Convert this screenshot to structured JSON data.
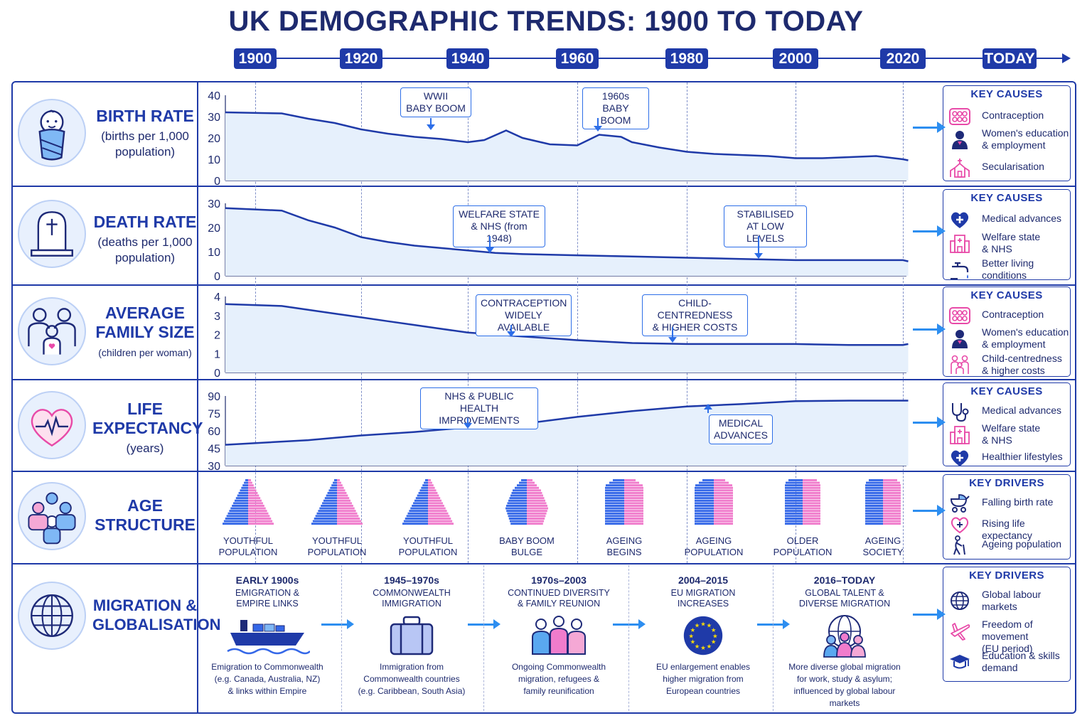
{
  "title": "UK DEMOGRAPHIC TRENDS: 1900 TO TODAY",
  "timeline": [
    "1900",
    "1920",
    "1940",
    "1960",
    "1980",
    "2000",
    "2020",
    "TODAY"
  ],
  "rows": {
    "birth": {
      "title_lines": [
        "BIRTH RATE"
      ],
      "sub_lines": [
        "(births per 1,000",
        "population)"
      ]
    },
    "death": {
      "title_lines": [
        "DEATH RATE"
      ],
      "sub_lines": [
        "(deaths per 1,000",
        "population)"
      ]
    },
    "family": {
      "title_lines": [
        "AVERAGE",
        "FAMILY SIZE"
      ],
      "sub_lines": [
        "(children per woman)"
      ]
    },
    "life": {
      "title_lines": [
        "LIFE",
        "EXPECTANCY"
      ],
      "sub_lines": [
        "(years)"
      ]
    },
    "age": {
      "title_lines": [
        "AGE",
        "STRUCTURE"
      ],
      "sub_lines": []
    },
    "migration": {
      "title_lines": [
        "MIGRATION &",
        "GLOBALISATION"
      ],
      "sub_lines": []
    }
  },
  "callouts": {
    "birth_wwii": [
      "WWII",
      "BABY BOOM"
    ],
    "birth_1960s": [
      "1960s",
      "BABY BOOM"
    ],
    "death_welfare": [
      "WELFARE STATE",
      "& NHS (from 1948)"
    ],
    "death_stabilised": [
      "STABILISED",
      "AT LOW LEVELS"
    ],
    "family_contraception": [
      "CONTRACEPTION",
      "WIDELY AVAILABLE"
    ],
    "family_child": [
      "CHILD-CENTREDNESS",
      "& HIGHER COSTS"
    ],
    "life_nhs": [
      "NHS & PUBLIC",
      "HEALTH IMPROVEMENTS"
    ],
    "life_medical": [
      "MEDICAL",
      "ADVANCES"
    ]
  },
  "causes": {
    "birth": {
      "title": "KEY CAUSES",
      "items": [
        {
          "icon": "pill-pack-icon",
          "text": [
            "Contraception"
          ]
        },
        {
          "icon": "woman-icon",
          "text": [
            "Women's education",
            "& employment"
          ]
        },
        {
          "icon": "church-icon",
          "text": [
            "Secularisation"
          ]
        }
      ]
    },
    "death": {
      "title": "KEY CAUSES",
      "items": [
        {
          "icon": "heart-plus-icon",
          "text": [
            "Medical advances"
          ]
        },
        {
          "icon": "hospital-icon",
          "text": [
            "Welfare state",
            "& NHS"
          ]
        },
        {
          "icon": "tap-icon",
          "text": [
            "Better living",
            "conditions"
          ]
        }
      ]
    },
    "family": {
      "title": "KEY CAUSES",
      "items": [
        {
          "icon": "pill-pack-icon",
          "text": [
            "Contraception"
          ]
        },
        {
          "icon": "woman-icon",
          "text": [
            "Women's education",
            "& employment"
          ]
        },
        {
          "icon": "family-icon",
          "text": [
            "Child-centredness",
            "& higher costs"
          ]
        }
      ]
    },
    "life": {
      "title": "KEY CAUSES",
      "items": [
        {
          "icon": "stethoscope-icon",
          "text": [
            "Medical advances"
          ]
        },
        {
          "icon": "hospital-icon",
          "text": [
            "Welfare state",
            "& NHS"
          ]
        },
        {
          "icon": "heart-plus-icon",
          "text": [
            "Healthier lifestyles"
          ]
        }
      ]
    },
    "age": {
      "title": "KEY DRIVERS",
      "items": [
        {
          "icon": "pram-icon",
          "text": [
            "Falling birth rate"
          ]
        },
        {
          "icon": "heart-outline-icon",
          "text": [
            "Rising life expectancy"
          ]
        },
        {
          "icon": "elderly-icon",
          "text": [
            "Ageing population"
          ]
        }
      ]
    },
    "migration": {
      "title": "KEY DRIVERS",
      "items": [
        {
          "icon": "globe-icon",
          "text": [
            "Global labour",
            "markets"
          ]
        },
        {
          "icon": "plane-icon",
          "text": [
            "Freedom of movement",
            "(EU period)"
          ]
        },
        {
          "icon": "graduation-cap-icon",
          "text": [
            "Education & skills",
            "demand"
          ]
        }
      ]
    }
  },
  "pyramids": [
    {
      "label": [
        "YOUTHFUL",
        "POPULATION"
      ],
      "shape": "youthful"
    },
    {
      "label": [
        "YOUTHFUL",
        "POPULATION"
      ],
      "shape": "youthful"
    },
    {
      "label": [
        "YOUTHFUL",
        "POPULATION"
      ],
      "shape": "youthful"
    },
    {
      "label": [
        "BABY BOOM",
        "BULGE"
      ],
      "shape": "bulge"
    },
    {
      "label": [
        "AGEING",
        "BEGINS"
      ],
      "shape": "ageing"
    },
    {
      "label": [
        "AGEING",
        "POPULATION"
      ],
      "shape": "ageing"
    },
    {
      "label": [
        "OLDER",
        "POPULATION"
      ],
      "shape": "older"
    },
    {
      "label": [
        "AGEING",
        "SOCIETY"
      ],
      "shape": "older"
    }
  ],
  "migration": [
    {
      "period": "EARLY 1900s",
      "title": [
        "EMIGRATION &",
        "EMPIRE LINKS"
      ],
      "desc": [
        "Emigration to Commonwealth",
        "(e.g. Canada, Australia, NZ)",
        "& links within Empire"
      ],
      "icon": "ship-icon"
    },
    {
      "period": "1945–1970s",
      "title": [
        "COMMONWEALTH",
        "IMMIGRATION"
      ],
      "desc": [
        "Immigration from",
        "Commonwealth countries",
        "(e.g. Caribbean, South Asia)"
      ],
      "icon": "suitcase-icon"
    },
    {
      "period": "1970s–2003",
      "title": [
        "CONTINUED DIVERSITY",
        "& FAMILY REUNION"
      ],
      "desc": [
        "Ongoing Commonwealth",
        "migration, refugees &",
        "family reunification"
      ],
      "icon": "people-icon"
    },
    {
      "period": "2004–2015",
      "title": [
        "EU MIGRATION",
        "INCREASES"
      ],
      "desc": [
        "EU enlargement enables",
        "higher migration from",
        "European countries"
      ],
      "icon": "eu-flag-icon"
    },
    {
      "period": "2016–TODAY",
      "title": [
        "GLOBAL TALENT &",
        "DIVERSE MIGRATION"
      ],
      "desc": [
        "More diverse global migration",
        "for work, study & asylum;",
        "influenced by global labour",
        "markets"
      ],
      "icon": "globe-people-icon"
    }
  ],
  "chart_data": [
    {
      "type": "area",
      "name": "birth_rate",
      "ylim": [
        0,
        40
      ],
      "yticks": [
        0,
        10,
        20,
        30,
        40
      ],
      "x": [
        1900,
        1905,
        1910,
        1915,
        1920,
        1925,
        1930,
        1935,
        1940,
        1943,
        1947,
        1950,
        1955,
        1960,
        1964,
        1968,
        1970,
        1975,
        1980,
        1985,
        1990,
        1995,
        2000,
        2005,
        2010,
        2015,
        2020,
        2021
      ],
      "y": [
        32,
        31.5,
        29,
        27,
        24,
        22,
        20.5,
        19.5,
        18,
        19,
        23.5,
        20,
        17,
        16.5,
        21.5,
        20.5,
        18,
        15.5,
        13.5,
        12.5,
        12,
        11.5,
        10.5,
        10.5,
        11,
        11.5,
        10,
        9.5
      ]
    },
    {
      "type": "area",
      "name": "death_rate",
      "ylim": [
        0,
        30
      ],
      "yticks": [
        0,
        10,
        20,
        30
      ],
      "x": [
        1900,
        1905,
        1910,
        1915,
        1920,
        1925,
        1930,
        1935,
        1940,
        1945,
        1950,
        1960,
        1970,
        1980,
        1990,
        2000,
        2010,
        2020,
        2021
      ],
      "y": [
        28,
        27,
        23,
        20,
        16,
        14,
        12.5,
        11.5,
        10.5,
        9.5,
        9,
        8.5,
        8,
        7.5,
        7,
        6.5,
        6.5,
        6.5,
        6
      ]
    },
    {
      "type": "area",
      "name": "family_size",
      "ylim": [
        0,
        4
      ],
      "yticks": [
        0,
        1,
        2,
        3,
        4
      ],
      "x": [
        1900,
        1905,
        1910,
        1915,
        1920,
        1925,
        1930,
        1935,
        1940,
        1950,
        1960,
        1970,
        1980,
        1990,
        2000,
        2010,
        2020,
        2021
      ],
      "y": [
        3.6,
        3.5,
        3.3,
        3.1,
        2.9,
        2.7,
        2.5,
        2.3,
        2.1,
        1.9,
        1.7,
        1.55,
        1.5,
        1.5,
        1.5,
        1.45,
        1.45,
        1.5
      ]
    },
    {
      "type": "area",
      "name": "life_expectancy",
      "ylim": [
        30,
        90
      ],
      "yticks": [
        30,
        45,
        60,
        75,
        90
      ],
      "x": [
        1900,
        1910,
        1920,
        1930,
        1940,
        1950,
        1960,
        1970,
        1980,
        1990,
        2000,
        2010,
        2020,
        2021
      ],
      "y": [
        48,
        52,
        56,
        59,
        63,
        66,
        72,
        77,
        81,
        83,
        85.5,
        86,
        86,
        86
      ]
    }
  ]
}
